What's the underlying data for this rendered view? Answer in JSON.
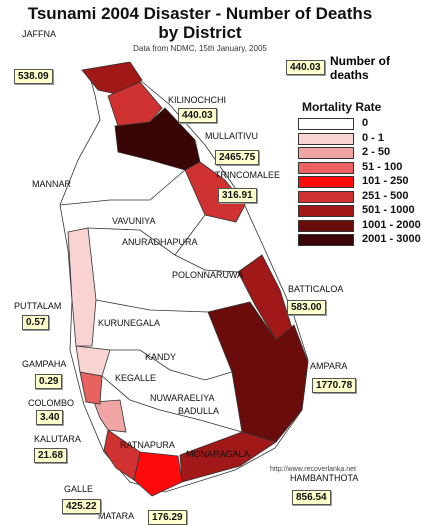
{
  "title": [
    "Tsunami 2004 Disaster - Number of Deaths",
    "by District"
  ],
  "subtitle": "Data from NDMC, 15th January, 2005",
  "key": {
    "value": "440.03",
    "label": "Number of deaths"
  },
  "legend": {
    "title": "Mortality Rate",
    "items": [
      {
        "range": "0",
        "color": "#ffffff"
      },
      {
        "range": "0 - 1",
        "color": "#f9d2d2"
      },
      {
        "range": "2 - 50",
        "color": "#f0a4a4"
      },
      {
        "range": "51 - 100",
        "color": "#e86262"
      },
      {
        "range": "101 - 250",
        "color": "#ff0a0a"
      },
      {
        "range": "251 - 500",
        "color": "#d03232"
      },
      {
        "range": "501 - 1000",
        "color": "#a01818"
      },
      {
        "range": "1001 - 2000",
        "color": "#6a0c0c"
      },
      {
        "range": "2001 - 3000",
        "color": "#3a0505"
      }
    ]
  },
  "districts": [
    {
      "name": "JAFFNA",
      "deaths": "538.09"
    },
    {
      "name": "KILINOCHCHI",
      "deaths": "440.03"
    },
    {
      "name": "MULLAITIVU",
      "deaths": "2465.75"
    },
    {
      "name": "TRINCOMALEE",
      "deaths": "316.91"
    },
    {
      "name": "BATTICALOA",
      "deaths": "583.00"
    },
    {
      "name": "AMPARA",
      "deaths": "1770.78"
    },
    {
      "name": "HAMBANTHOTA",
      "deaths": "856.54"
    },
    {
      "name": "MATARA",
      "deaths": "176.29"
    },
    {
      "name": "GALLE",
      "deaths": "425.22"
    },
    {
      "name": "KALUTARA",
      "deaths": "21.68"
    },
    {
      "name": "COLOMBO",
      "deaths": "3.40"
    },
    {
      "name": "GAMPAHA",
      "deaths": "0.29"
    },
    {
      "name": "PUTTALAM",
      "deaths": "0.57"
    },
    {
      "name": "MANNAR"
    },
    {
      "name": "VAVUNIYA"
    },
    {
      "name": "ANURADHAPURA"
    },
    {
      "name": "POLONNARUWA"
    },
    {
      "name": "KURUNEGALA"
    },
    {
      "name": "KANDY"
    },
    {
      "name": "KEGALLE"
    },
    {
      "name": "NUWARAELIYA"
    },
    {
      "name": "BADULLA"
    },
    {
      "name": "RATNAPURA"
    },
    {
      "name": "MONARAGALA"
    }
  ],
  "source_url": "http://www.recoverlanka.net"
}
